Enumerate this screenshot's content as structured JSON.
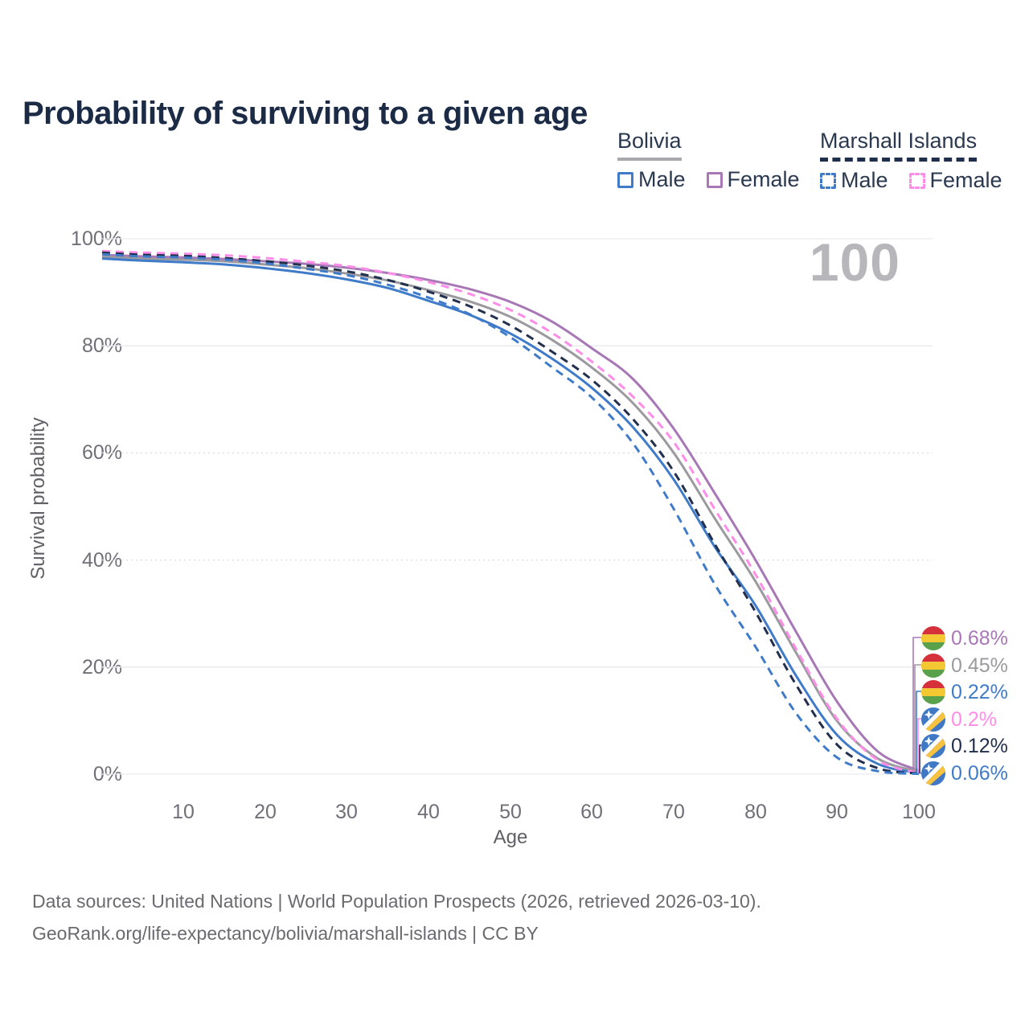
{
  "title": "Probability of surviving to a given age",
  "watermark": "100",
  "legend": {
    "groups": [
      {
        "title": "Bolivia",
        "underline_color": "#a9a9ad",
        "underline_dashed": false,
        "items": [
          {
            "label": "Male",
            "color": "#3f7bc8",
            "dashed": false
          },
          {
            "label": "Female",
            "color": "#a877b5",
            "dashed": false
          }
        ]
      },
      {
        "title": "Marshall Islands",
        "underline_color": "#1f2e4d",
        "underline_dashed": true,
        "items": [
          {
            "label": "Male",
            "color": "#3f7bc8",
            "dashed": true
          },
          {
            "label": "Female",
            "color": "#ff8ce8",
            "dashed": true
          }
        ]
      }
    ]
  },
  "axes": {
    "y_label": "Survival probability",
    "x_label": "Age",
    "y_ticks": [
      "100%",
      "80%",
      "60%",
      "40%",
      "20%",
      "0%"
    ],
    "x_ticks": [
      "10",
      "20",
      "30",
      "40",
      "50",
      "60",
      "70",
      "80",
      "90",
      "100"
    ]
  },
  "end_labels": [
    {
      "value": "0.68%",
      "flag": "bolivia",
      "color": "#a877b5"
    },
    {
      "value": "0.45%",
      "flag": "bolivia",
      "color": "#9b9b9f"
    },
    {
      "value": "0.22%",
      "flag": "bolivia",
      "color": "#3f7bc8"
    },
    {
      "value": "0.2%",
      "flag": "marshall-islands",
      "color": "#ff8ce8"
    },
    {
      "value": "0.12%",
      "flag": "marshall-islands",
      "color": "#22304e"
    },
    {
      "value": "0.06%",
      "flag": "marshall-islands",
      "color": "#3f7bc8"
    }
  ],
  "flags": {
    "bolivia": {
      "red": "#d6303a",
      "yellow": "#f3c832",
      "green": "#5aa14b"
    },
    "marshall_islands": {
      "blue": "#3f78c5",
      "white": "#ffffff",
      "orange": "#f6c23f"
    }
  },
  "footer": {
    "line1": "Data sources: United Nations | World Population Prospects (2026, retrieved 2026-03-10).",
    "line2": "GeoRank.org/life-expectancy/bolivia/marshall-islands | CC BY"
  },
  "chart_data": {
    "type": "line",
    "title": "Probability of surviving to a given age",
    "xlabel": "Age",
    "ylabel": "Survival probability",
    "xlim": [
      0,
      100
    ],
    "ylim": [
      0,
      100
    ],
    "grid": "horizontal-light",
    "legend_position": "top-right",
    "hovered_x": 100,
    "ages": [
      0,
      5,
      10,
      15,
      20,
      25,
      30,
      35,
      40,
      45,
      50,
      55,
      60,
      65,
      70,
      75,
      80,
      85,
      90,
      95,
      100
    ],
    "series": [
      {
        "name": "Bolivia Female",
        "color": "#a877b5",
        "dashed": false,
        "end_label": "0.68%",
        "values": [
          97.0,
          96.7,
          96.5,
          96.2,
          95.8,
          95.3,
          94.6,
          93.6,
          92.3,
          90.6,
          88.2,
          84.6,
          79.5,
          73.8,
          64.5,
          52.5,
          40.0,
          26.5,
          13.5,
          4.2,
          0.68
        ]
      },
      {
        "name": "Bolivia Both sexes",
        "color": "#9b9b9f",
        "dashed": false,
        "end_label": "0.45%",
        "values": [
          96.7,
          96.3,
          96.1,
          95.8,
          95.2,
          94.5,
          93.5,
          92.2,
          90.4,
          88.3,
          85.4,
          81.2,
          75.9,
          69.3,
          60.0,
          47.8,
          36.0,
          22.6,
          9.9,
          2.9,
          0.45
        ]
      },
      {
        "name": "Bolivia Male",
        "color": "#3f7bc8",
        "dashed": false,
        "end_label": "0.22%",
        "values": [
          96.3,
          95.9,
          95.6,
          95.2,
          94.5,
          93.6,
          92.4,
          90.8,
          88.4,
          85.8,
          82.3,
          77.7,
          72.1,
          64.8,
          55.0,
          42.5,
          31.5,
          18.3,
          7.3,
          1.9,
          0.22
        ]
      },
      {
        "name": "Marshall Islands Female",
        "color": "#ff8ce8",
        "dashed": true,
        "end_label": "0.2%",
        "values": [
          97.7,
          97.4,
          97.2,
          96.9,
          96.4,
          95.7,
          94.9,
          93.6,
          91.9,
          89.7,
          86.7,
          82.5,
          77.0,
          70.5,
          62.0,
          49.5,
          37.3,
          23.3,
          10.3,
          2.6,
          0.2
        ]
      },
      {
        "name": "Marshall Islands Both sexes",
        "color": "#22304e",
        "dashed": true,
        "end_label": "0.12%",
        "values": [
          97.4,
          97.0,
          96.8,
          96.4,
          95.8,
          95.0,
          93.9,
          92.3,
          90.1,
          87.4,
          83.8,
          79.0,
          73.6,
          66.3,
          56.5,
          43.0,
          30.3,
          16.6,
          5.5,
          1.1,
          0.12
        ]
      },
      {
        "name": "Marshall Islands Male",
        "color": "#3f7bc8",
        "dashed": true,
        "end_label": "0.06%",
        "values": [
          97.1,
          96.7,
          96.5,
          96.1,
          95.4,
          94.4,
          93.2,
          91.4,
          89.0,
          85.9,
          81.6,
          76.1,
          70.3,
          61.8,
          49.5,
          35.5,
          23.8,
          11.3,
          3.1,
          0.55,
          0.06
        ]
      }
    ]
  }
}
